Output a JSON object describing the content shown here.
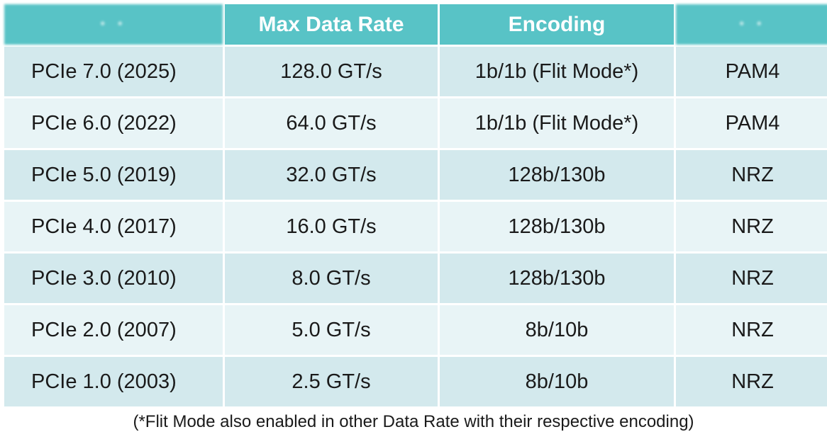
{
  "table": {
    "headers": [
      "",
      "Max Data Rate",
      "Encoding",
      ""
    ],
    "rows": [
      [
        "PCIe 7.0 (2025)",
        "128.0 GT/s",
        "1b/1b (Flit Mode*)",
        "PAM4"
      ],
      [
        "PCIe 6.0 (2022)",
        "64.0 GT/s",
        "1b/1b (Flit Mode*)",
        "PAM4"
      ],
      [
        "PCIe 5.0 (2019)",
        "32.0 GT/s",
        "128b/130b",
        "NRZ"
      ],
      [
        "PCIe 4.0 (2017)",
        "16.0 GT/s",
        "128b/130b",
        "NRZ"
      ],
      [
        "PCIe 3.0 (2010)",
        "8.0 GT/s",
        "128b/130b",
        "NRZ"
      ],
      [
        "PCIe 2.0 (2007)",
        "5.0 GT/s",
        "8b/10b",
        "NRZ"
      ],
      [
        "PCIe 1.0 (2003)",
        "2.5 GT/s",
        "8b/10b",
        "NRZ"
      ]
    ]
  },
  "footnote": "(*Flit Mode also enabled in other Data Rate with their respective encoding)",
  "colors": {
    "header_bg": "#58c3c6",
    "row_dark": "#d3e9ed",
    "row_light": "#e8f4f6"
  }
}
